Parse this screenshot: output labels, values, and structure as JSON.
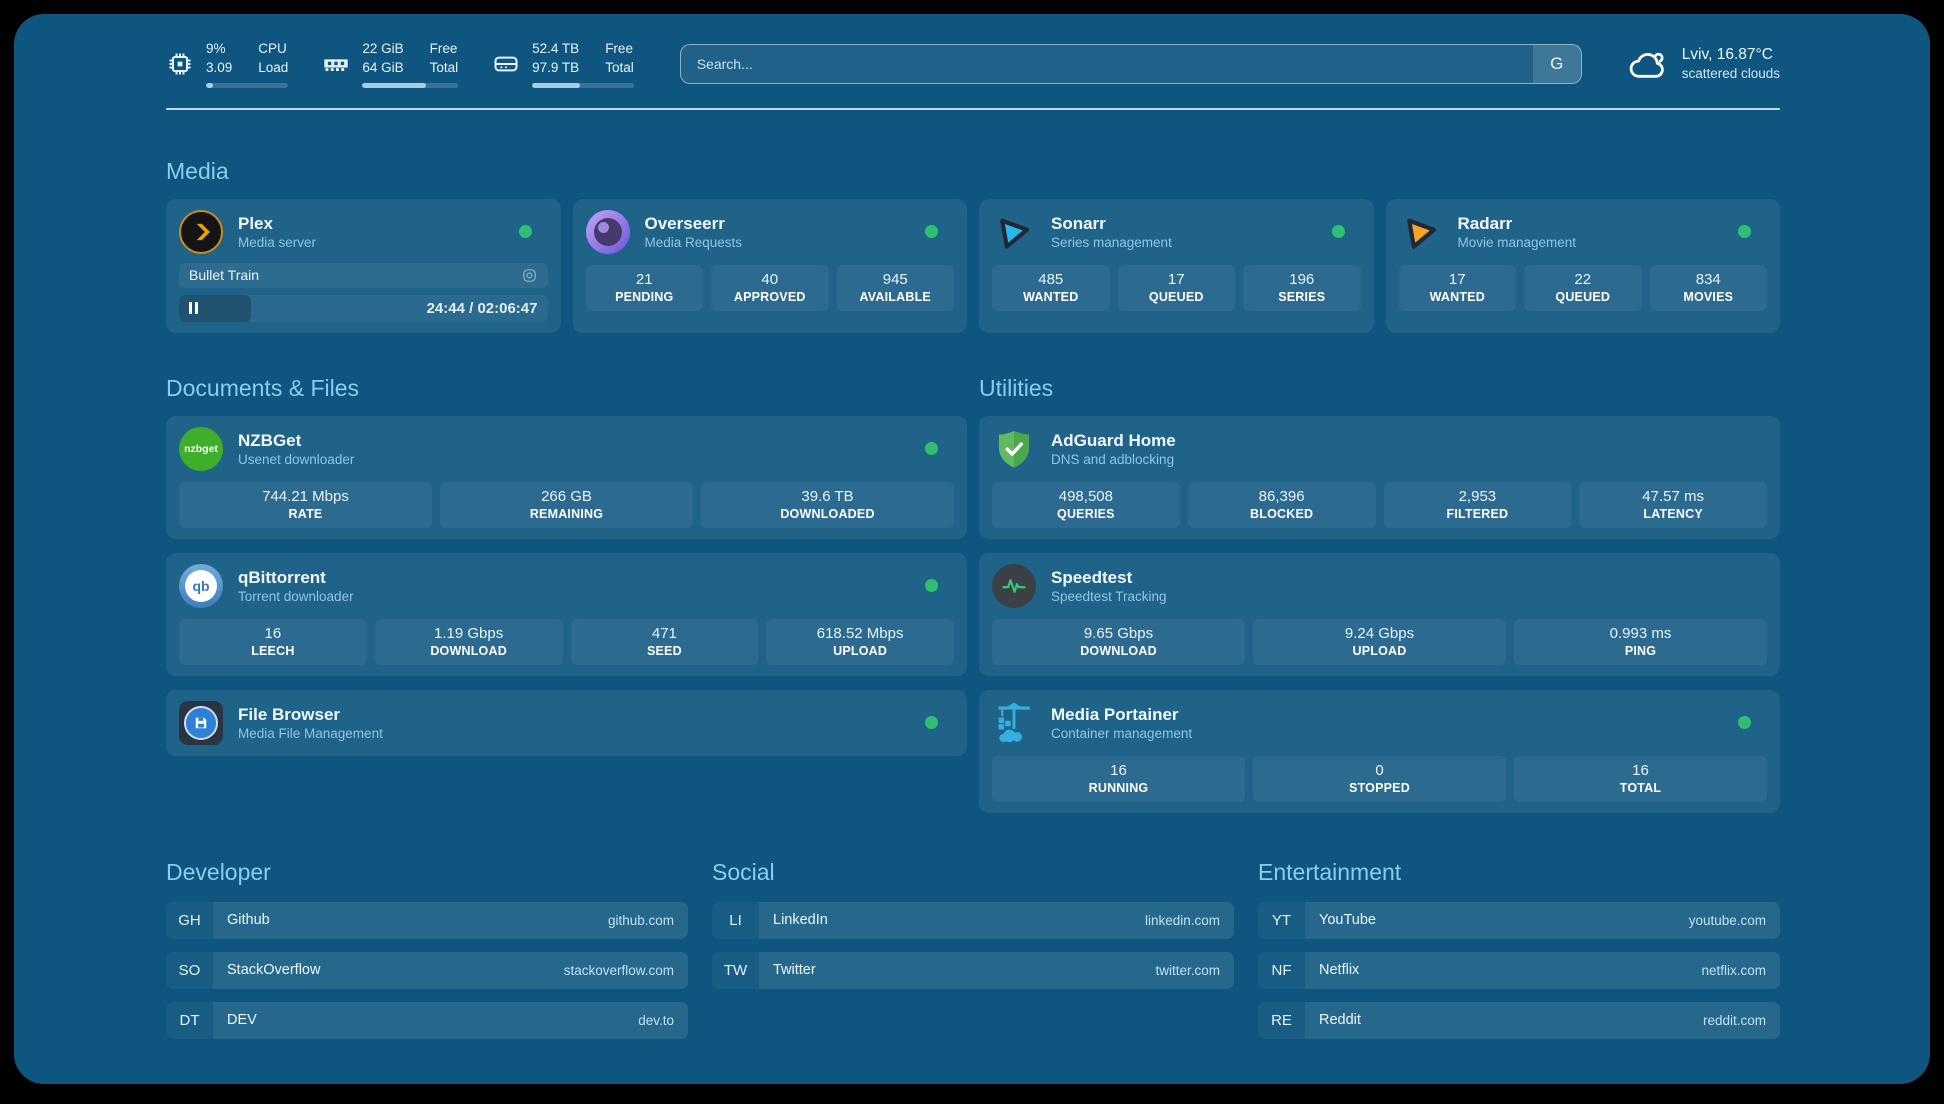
{
  "header": {
    "stats": [
      {
        "name": "cpu",
        "value1": "9%",
        "value2": "3.09",
        "label1": "CPU",
        "label2": "Load",
        "progress": 9
      },
      {
        "name": "memory",
        "value1": "22 GiB",
        "value2": "64 GiB",
        "label1": "Free",
        "label2": "Total",
        "progress": 66
      },
      {
        "name": "disk",
        "value1": "52.4 TB",
        "value2": "97.9 TB",
        "label1": "Free",
        "label2": "Total",
        "progress": 47
      }
    ],
    "search": {
      "placeholder": "Search...",
      "button": "G"
    },
    "weather": {
      "location_temp": "Lviv, 16.87°C",
      "condition": "scattered clouds"
    }
  },
  "media": {
    "title": "Media",
    "plex": {
      "name": "Plex",
      "subtitle": "Media server",
      "now_playing": "Bullet Train",
      "time": "24:44 / 02:06:47",
      "progress": 19.5
    },
    "overseerr": {
      "name": "Overseerr",
      "subtitle": "Media Requests",
      "stats": [
        {
          "v": "21",
          "l": "PENDING"
        },
        {
          "v": "40",
          "l": "APPROVED"
        },
        {
          "v": "945",
          "l": "AVAILABLE"
        }
      ]
    },
    "sonarr": {
      "name": "Sonarr",
      "subtitle": "Series management",
      "stats": [
        {
          "v": "485",
          "l": "WANTED"
        },
        {
          "v": "17",
          "l": "QUEUED"
        },
        {
          "v": "196",
          "l": "SERIES"
        }
      ]
    },
    "radarr": {
      "name": "Radarr",
      "subtitle": "Movie management",
      "stats": [
        {
          "v": "17",
          "l": "WANTED"
        },
        {
          "v": "22",
          "l": "QUEUED"
        },
        {
          "v": "834",
          "l": "MOVIES"
        }
      ]
    }
  },
  "documents": {
    "title": "Documents & Files",
    "nzbget": {
      "name": "NZBGet",
      "subtitle": "Usenet downloader",
      "logo_text": "nzbget",
      "stats": [
        {
          "v": "744.21 Mbps",
          "l": "RATE"
        },
        {
          "v": "266 GB",
          "l": "REMAINING"
        },
        {
          "v": "39.6 TB",
          "l": "DOWNLOADED"
        }
      ]
    },
    "qbittorrent": {
      "name": "qBittorrent",
      "subtitle": "Torrent downloader",
      "logo_text": "qb",
      "stats": [
        {
          "v": "16",
          "l": "LEECH"
        },
        {
          "v": "1.19 Gbps",
          "l": "DOWNLOAD"
        },
        {
          "v": "471",
          "l": "SEED"
        },
        {
          "v": "618.52 Mbps",
          "l": "UPLOAD"
        }
      ]
    },
    "filebrowser": {
      "name": "File Browser",
      "subtitle": "Media File Management"
    }
  },
  "utilities": {
    "title": "Utilities",
    "adguard": {
      "name": "AdGuard Home",
      "subtitle": "DNS and adblocking",
      "stats": [
        {
          "v": "498,508",
          "l": "QUERIES"
        },
        {
          "v": "86,396",
          "l": "BLOCKED"
        },
        {
          "v": "2,953",
          "l": "FILTERED"
        },
        {
          "v": "47.57 ms",
          "l": "LATENCY"
        }
      ]
    },
    "speedtest": {
      "name": "Speedtest",
      "subtitle": "Speedtest Tracking",
      "stats": [
        {
          "v": "9.65 Gbps",
          "l": "DOWNLOAD"
        },
        {
          "v": "9.24 Gbps",
          "l": "UPLOAD"
        },
        {
          "v": "0.993 ms",
          "l": "PING"
        }
      ]
    },
    "portainer": {
      "name": "Media Portainer",
      "subtitle": "Container management",
      "stats": [
        {
          "v": "16",
          "l": "RUNNING"
        },
        {
          "v": "0",
          "l": "STOPPED"
        },
        {
          "v": "16",
          "l": "TOTAL"
        }
      ]
    }
  },
  "bookmarks": [
    {
      "title": "Developer",
      "links": [
        {
          "tag": "GH",
          "name": "Github",
          "url": "github.com"
        },
        {
          "tag": "SO",
          "name": "StackOverflow",
          "url": "stackoverflow.com"
        },
        {
          "tag": "DT",
          "name": "DEV",
          "url": "dev.to"
        }
      ]
    },
    {
      "title": "Social",
      "links": [
        {
          "tag": "LI",
          "name": "LinkedIn",
          "url": "linkedin.com"
        },
        {
          "tag": "TW",
          "name": "Twitter",
          "url": "twitter.com"
        }
      ]
    },
    {
      "title": "Entertainment",
      "links": [
        {
          "tag": "YT",
          "name": "YouTube",
          "url": "youtube.com"
        },
        {
          "tag": "NF",
          "name": "Netflix",
          "url": "netflix.com"
        },
        {
          "tag": "RE",
          "name": "Reddit",
          "url": "reddit.com"
        }
      ]
    }
  ],
  "colors": {
    "page_bg": "#0e567f",
    "status_green": "#2fbf71",
    "section_title": "#85cfee",
    "plex_amber": "#e5a00d",
    "sonarr_cyan": "#27b9ec",
    "radarr_orange": "#f6a623",
    "nzbget_green": "#3fae2a",
    "adguard_green": "#60ba5f",
    "speedtest_green": "#2fd178",
    "portainer_blue": "#35aee0",
    "filebrowser_blue": "#2f7fd6",
    "progress_fill": "#a9cde3"
  }
}
